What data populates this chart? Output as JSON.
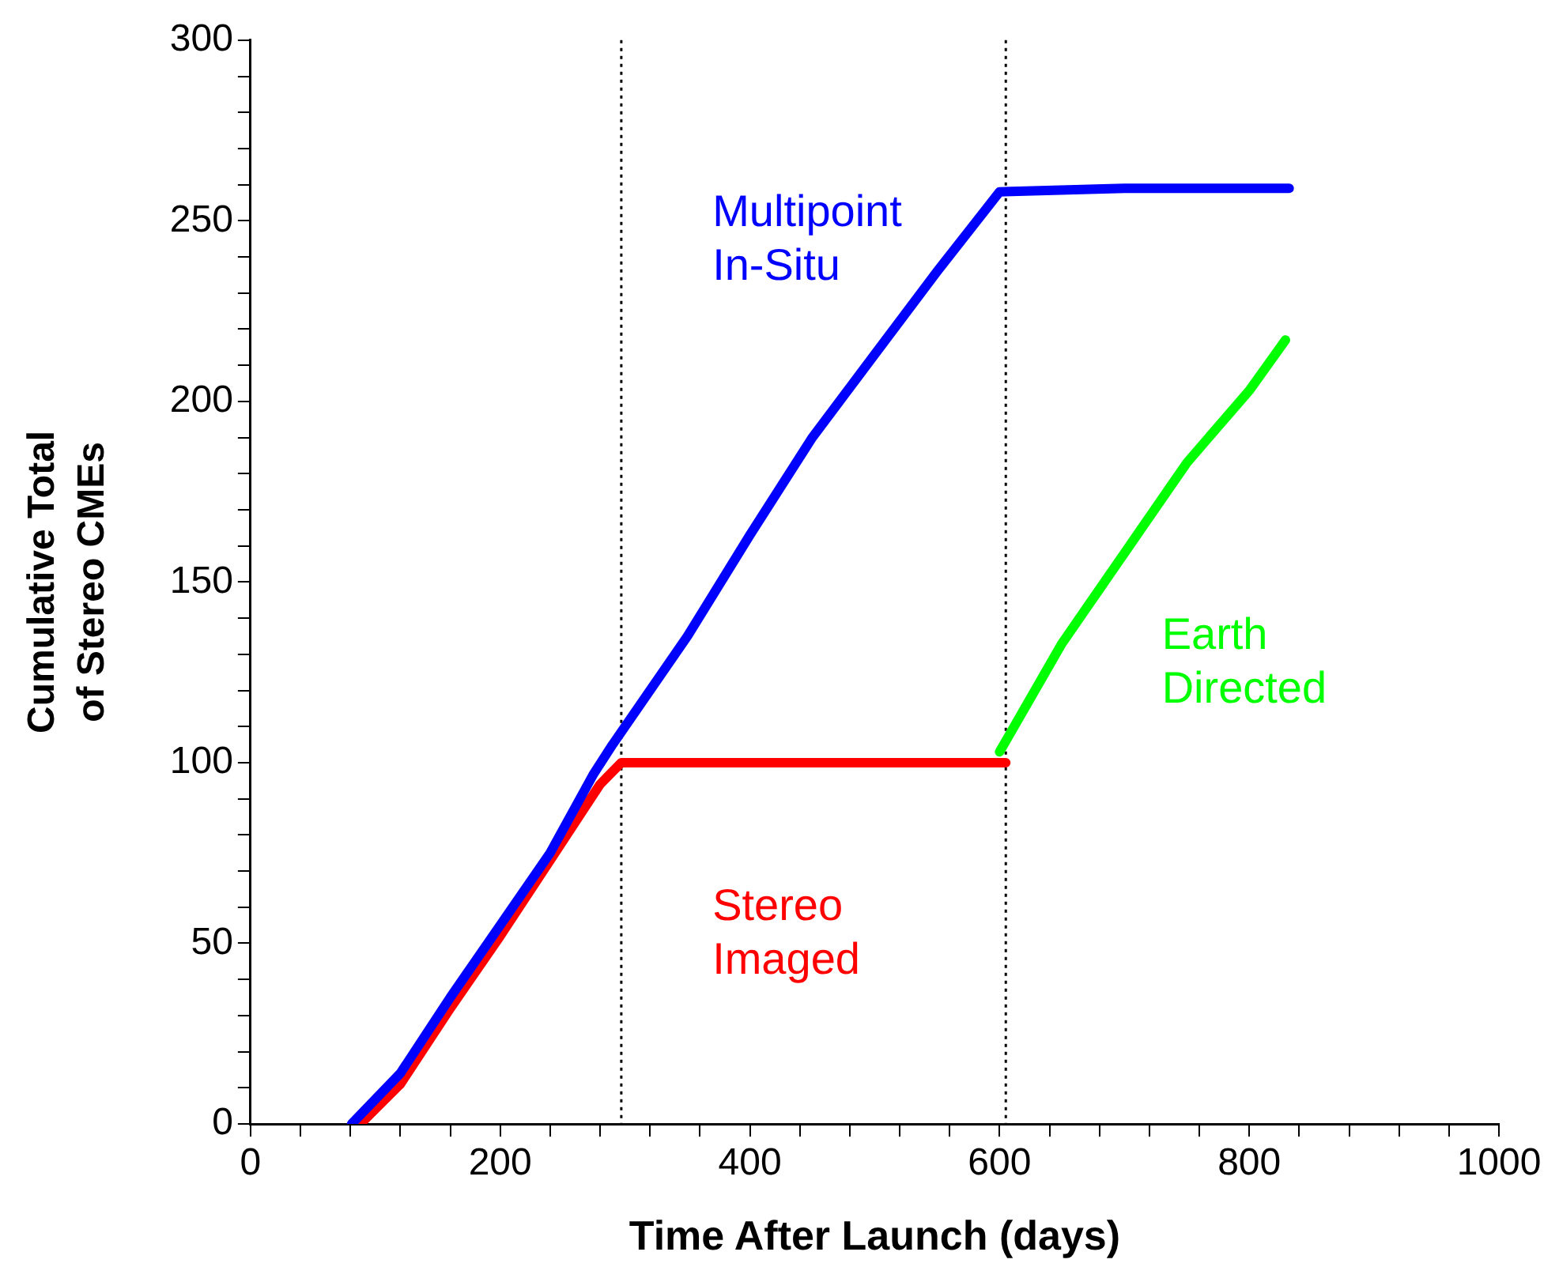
{
  "chart_data": {
    "type": "line",
    "xlabel": "Time After Launch (days)",
    "ylabel": "Cumulative Total of Stereo CMEs",
    "xlim": [
      0,
      1000
    ],
    "ylim": [
      0,
      300
    ],
    "xticks": [
      0,
      {
        "value": 40,
        "label": null
      },
      {
        "value": 80,
        "label": null
      },
      {
        "value": 120,
        "label": null
      },
      {
        "value": 160,
        "label": null
      },
      200,
      {
        "value": 240,
        "label": null
      },
      {
        "value": 280,
        "label": null
      },
      {
        "value": 320,
        "label": null
      },
      {
        "value": 360,
        "label": null
      },
      400,
      {
        "value": 440,
        "label": null
      },
      {
        "value": 480,
        "label": null
      },
      {
        "value": 520,
        "label": null
      },
      {
        "value": 560,
        "label": null
      },
      600,
      {
        "value": 640,
        "label": null
      },
      {
        "value": 680,
        "label": null
      },
      {
        "value": 720,
        "label": null
      },
      {
        "value": 760,
        "label": null
      },
      800,
      {
        "value": 840,
        "label": null
      },
      {
        "value": 880,
        "label": null
      },
      {
        "value": 920,
        "label": null
      },
      {
        "value": 960,
        "label": null
      },
      1000
    ],
    "yticks": [
      0,
      {
        "value": 10,
        "label": null
      },
      {
        "value": 20,
        "label": null
      },
      {
        "value": 30,
        "label": null
      },
      {
        "value": 40,
        "label": null
      },
      50,
      {
        "value": 60,
        "label": null
      },
      {
        "value": 70,
        "label": null
      },
      {
        "value": 80,
        "label": null
      },
      {
        "value": 90,
        "label": null
      },
      100,
      {
        "value": 110,
        "label": null
      },
      {
        "value": 120,
        "label": null
      },
      {
        "value": 130,
        "label": null
      },
      {
        "value": 140,
        "label": null
      },
      150,
      {
        "value": 160,
        "label": null
      },
      {
        "value": 170,
        "label": null
      },
      {
        "value": 180,
        "label": null
      },
      {
        "value": 190,
        "label": null
      },
      200,
      {
        "value": 210,
        "label": null
      },
      {
        "value": 220,
        "label": null
      },
      {
        "value": 230,
        "label": null
      },
      {
        "value": 240,
        "label": null
      },
      250,
      {
        "value": 260,
        "label": null
      },
      {
        "value": 270,
        "label": null
      },
      {
        "value": 280,
        "label": null
      },
      {
        "value": 290,
        "label": null
      },
      300
    ],
    "grid": false,
    "legend": false,
    "marker": "none",
    "line_style": "solid",
    "series": [
      {
        "name": "Multipoint In-Situ",
        "color": "#0000ff",
        "x": [
          81,
          120,
          160,
          200,
          240,
          275,
          290,
          350,
          400,
          450,
          500,
          550,
          600,
          700,
          832
        ],
        "values": [
          0,
          14,
          35,
          55,
          75,
          97,
          105,
          135,
          163,
          190,
          213,
          236,
          258,
          259,
          259
        ]
      },
      {
        "name": "Stereo Imaged",
        "color": "#ff0000",
        "x": [
          88,
          120,
          160,
          200,
          240,
          280,
          297,
          400,
          500,
          605
        ],
        "values": [
          0,
          11,
          32,
          52,
          73,
          94,
          100,
          100,
          100,
          100
        ]
      },
      {
        "name": "Earth Directed",
        "color": "#00ff00",
        "x": [
          600,
          650,
          700,
          750,
          800,
          829
        ],
        "values": [
          103,
          133,
          158,
          183,
          203,
          217
        ]
      }
    ],
    "ref_lines": [
      {
        "axis": "x",
        "value": 297,
        "color": "#000000",
        "line_style": "dotted"
      },
      {
        "axis": "x",
        "value": 605,
        "color": "#000000",
        "line_style": "dotted"
      }
    ]
  }
}
